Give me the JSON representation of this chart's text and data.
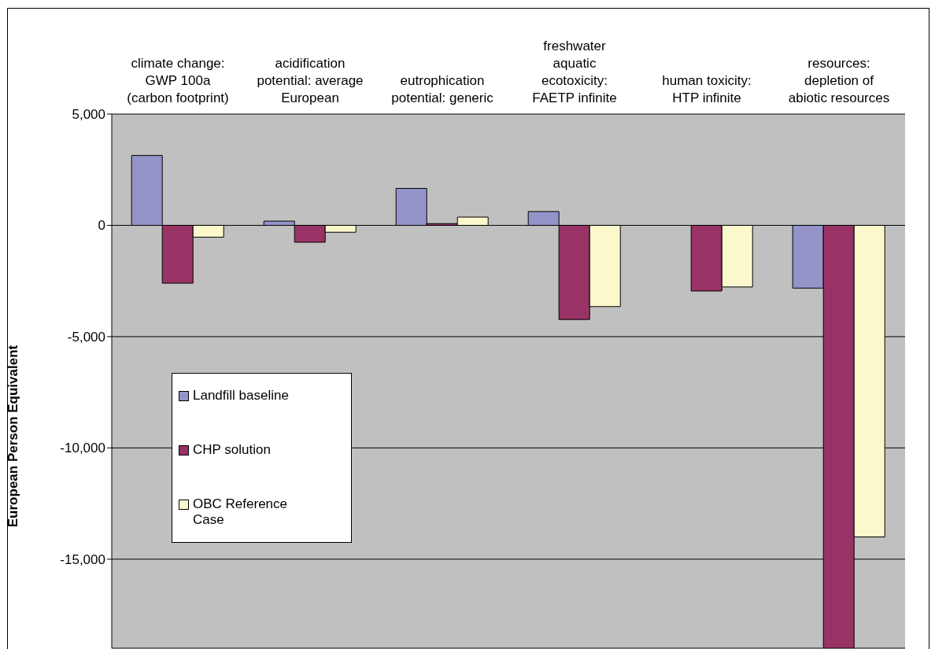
{
  "chart_data": {
    "type": "bar",
    "ylabel": "European Person Equivalent",
    "categories": [
      "climate change:\nGWP 100a\n(carbon footprint)",
      "acidification\npotential: average\nEuropean",
      "eutrophication\npotential: generic",
      "freshwater\naquatic\necotoxicity:\nFAETP infinite",
      "human toxicity:\nHTP infinite",
      "resources:\ndepletion of\nabiotic resources"
    ],
    "series": [
      {
        "name": "Landfill baseline",
        "color": "#9494c9",
        "values": [
          3140,
          190,
          1660,
          620,
          null,
          -2820
        ]
      },
      {
        "name": "CHP solution",
        "color": "#993366",
        "values": [
          -2600,
          -760,
          80,
          -4230,
          -2950,
          -19000
        ]
      },
      {
        "name": "OBC Reference Case",
        "color": "#fbf8cc",
        "values": [
          -530,
          -310,
          370,
          -3650,
          -2770,
          -14000
        ]
      }
    ],
    "ylim": [
      -19000,
      5000
    ],
    "yticks": [
      {
        "value": 5000,
        "label": "5,000"
      },
      0,
      {
        "value": -5000,
        "label": "-5,000"
      },
      {
        "value": -10000,
        "label": "-10,000"
      },
      {
        "value": -15000,
        "label": "-15,000"
      }
    ],
    "grid": "y",
    "legend": "left"
  }
}
